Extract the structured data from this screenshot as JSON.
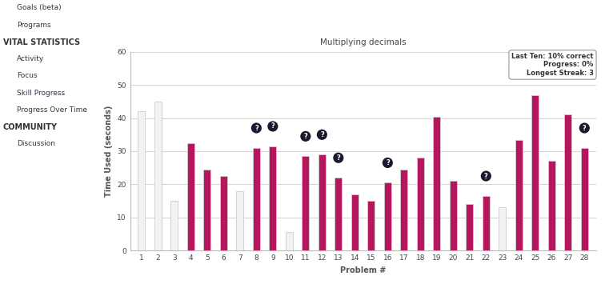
{
  "chart_data": {
    "type": "bar",
    "title": "Multiplying decimals",
    "x_label": "Problem #",
    "y_label": "Time Used (seconds)",
    "categories": [
      "1",
      "2",
      "3",
      "4",
      "5",
      "6",
      "7",
      "8",
      "9",
      "10",
      "11",
      "12",
      "13",
      "14",
      "15",
      "16",
      "17",
      "18",
      "19",
      "20",
      "21",
      "22",
      "23",
      "24",
      "25",
      "26",
      "27",
      "28"
    ],
    "values": [
      42,
      45,
      15,
      32.5,
      24.5,
      22.5,
      18,
      31,
      31.5,
      5.5,
      28.5,
      29,
      22,
      17,
      15,
      20.5,
      24.5,
      28,
      40.5,
      21,
      14,
      16.5,
      13,
      33.5,
      47,
      27,
      41,
      31
    ],
    "colors": [
      "#f2f2f2",
      "#f2f2f2",
      "#f2f2f2",
      "#b5175e",
      "#b5175e",
      "#b5175e",
      "#f2f2f2",
      "#b5175e",
      "#b5175e",
      "#f2f2f2",
      "#b5175e",
      "#b5175e",
      "#b5175e",
      "#b5175e",
      "#b5175e",
      "#b5175e",
      "#b5175e",
      "#b5175e",
      "#b5175e",
      "#b5175e",
      "#b5175e",
      "#b5175e",
      "#f2f2f2",
      "#b5175e",
      "#b5175e",
      "#b5175e",
      "#b5175e",
      "#b5175e"
    ],
    "ylim": [
      0,
      60
    ],
    "yticks": [
      0,
      10,
      20,
      30,
      40,
      50,
      60
    ],
    "grid": true,
    "annotations": [
      {
        "category": "8",
        "text": "?"
      },
      {
        "category": "9",
        "text": "?"
      },
      {
        "category": "11",
        "text": "?"
      },
      {
        "category": "12",
        "text": "?"
      },
      {
        "category": "13",
        "text": "?"
      },
      {
        "category": "16",
        "text": "?"
      },
      {
        "category": "22",
        "text": "?"
      },
      {
        "category": "28",
        "text": "?"
      }
    ],
    "info_box": [
      "Last Ten: 10% correct",
      "Progress: 0%",
      "Longest Streak: 3"
    ]
  },
  "sidebar": [
    {
      "text": "Goals (beta)",
      "header": false
    },
    {
      "text": "Programs",
      "header": false
    },
    {
      "text": "VITAL STATISTICS",
      "header": true
    },
    {
      "text": "Activity",
      "header": false
    },
    {
      "text": "Focus",
      "header": false
    },
    {
      "text": "Skill Progress",
      "header": false
    },
    {
      "text": "Progress Over Time",
      "header": false
    },
    {
      "text": "COMMUNITY",
      "header": true
    },
    {
      "text": "Discussion",
      "header": false
    }
  ]
}
